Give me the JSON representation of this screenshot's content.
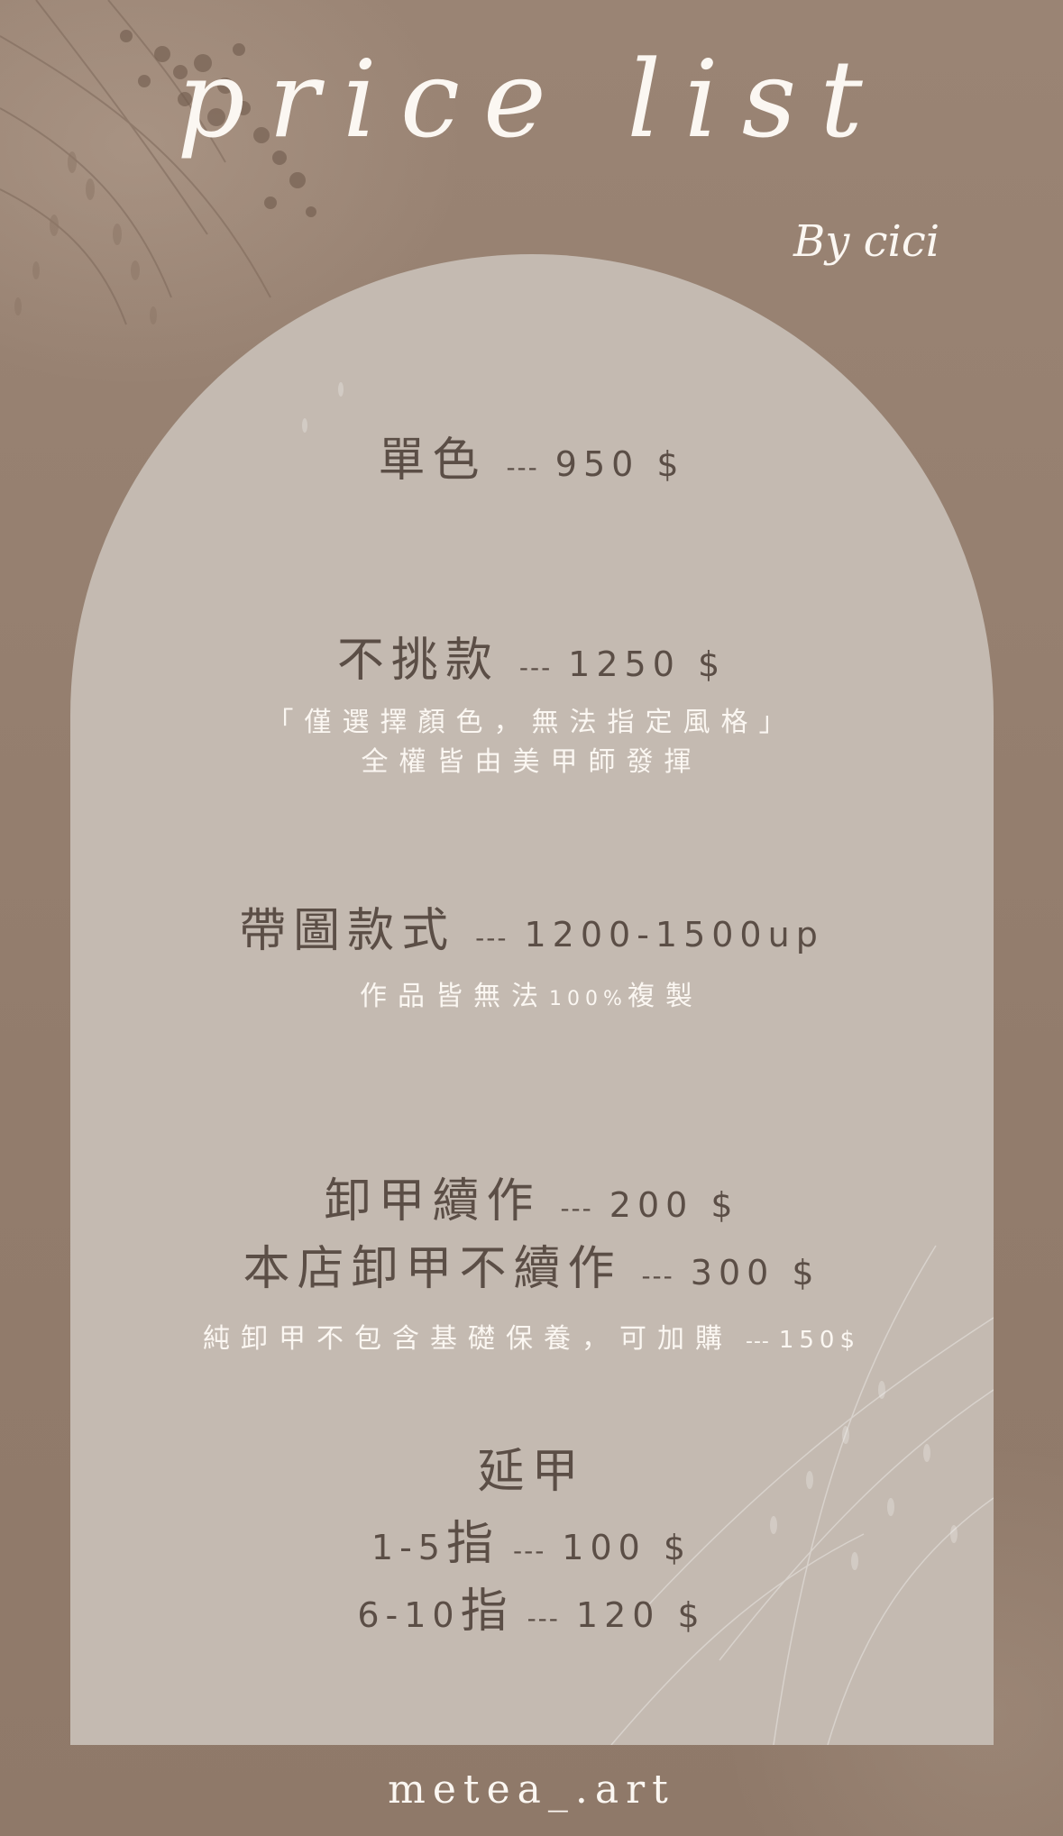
{
  "header": {
    "title": "price list",
    "byline": "By cici"
  },
  "items": {
    "single_color": {
      "name": "單色",
      "dash": "---",
      "price": "950 $"
    },
    "no_pick": {
      "name": "不挑款",
      "dash": "---",
      "price": "1250 $",
      "note_line1": "「僅選擇顏色，無法指定風格」",
      "note_line2": "全權皆由美甲師發揮"
    },
    "with_design": {
      "name": "帶圖款式",
      "dash": "---",
      "price": "1200-1500up",
      "note_a": "作品皆無法",
      "note_b": "100%",
      "note_c": "複製"
    },
    "removal_continue": {
      "name": "卸甲續作",
      "dash": "---",
      "price": "200 $"
    },
    "removal_other_shop": {
      "name": "本店卸甲不續作",
      "dash": "---",
      "price": "300 $"
    },
    "removal_note": {
      "text": "純卸甲不包含基礎保養，可加購",
      "dash": "---",
      "price": "150$"
    },
    "extension": {
      "title": "延甲",
      "row1": {
        "count": "1-5",
        "unit": "指",
        "dash": "---",
        "price": "100 $"
      },
      "row2": {
        "count": "6-10",
        "unit": "指",
        "dash": "---",
        "price": "120 $"
      }
    }
  },
  "footer": {
    "handle": "metea_.art"
  },
  "colors": {
    "background": "#957f6f",
    "arch": "#c4bab1",
    "dark_text": "#5b4e46",
    "light_text": "#fbf7f2"
  }
}
